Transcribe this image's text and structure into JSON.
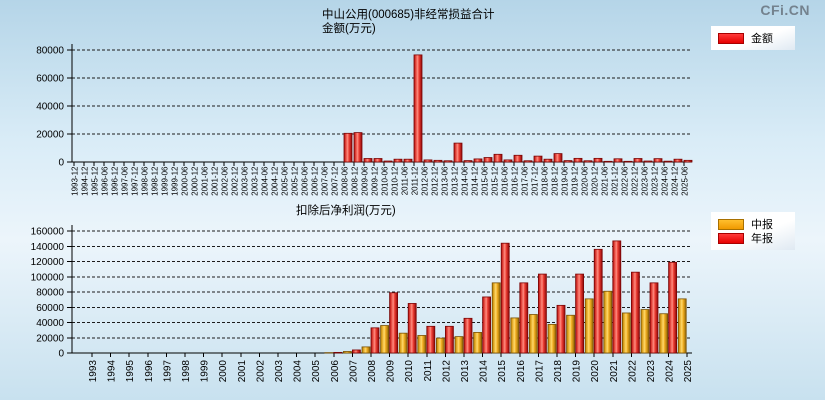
{
  "watermark": "CFi.CN",
  "chart_data": [
    {
      "name": "nonrecurring-gains",
      "type": "bar",
      "title": "中山公用(000685)非经常损益合计",
      "subtitle": "金额(万元)",
      "legend": [
        {
          "label": "金额",
          "color": "#ff0000"
        }
      ],
      "ylim": [
        0,
        80000
      ],
      "ytick_step": 20000,
      "grid": "dashed",
      "legend_position": "top-right",
      "categories": [
        "1993-12",
        "1994-12",
        "1995-12",
        "1996-06",
        "1996-12",
        "1997-06",
        "1997-12",
        "1998-06",
        "1998-12",
        "1999-06",
        "1999-12",
        "2000-06",
        "2000-12",
        "2001-06",
        "2001-12",
        "2002-06",
        "2002-12",
        "2003-06",
        "2003-12",
        "2004-06",
        "2004-12",
        "2005-06",
        "2005-12",
        "2006-06",
        "2006-12",
        "2007-06",
        "2007-12",
        "2008-06",
        "2008-12",
        "2009-06",
        "2009-12",
        "2010-06",
        "2010-12",
        "2011-06",
        "2011-12",
        "2012-06",
        "2012-12",
        "2013-06",
        "2013-12",
        "2014-06",
        "2014-12",
        "2015-06",
        "2015-12",
        "2016-06",
        "2016-12",
        "2017-06",
        "2017-12",
        "2018-06",
        "2018-12",
        "2019-06",
        "2019-12",
        "2020-06",
        "2020-12",
        "2021-06",
        "2021-12",
        "2022-06",
        "2022-12",
        "2023-06",
        "2023-12",
        "2024-06",
        "2024-12",
        "2025-06"
      ],
      "values": [
        0,
        0,
        0,
        0,
        0,
        0,
        0,
        0,
        0,
        0,
        0,
        0,
        0,
        0,
        0,
        0,
        0,
        0,
        0,
        0,
        0,
        0,
        0,
        0,
        0,
        0,
        0,
        20500,
        21000,
        2500,
        2500,
        700,
        2000,
        2000,
        76500,
        1500,
        1200,
        900,
        13500,
        1000,
        2200,
        3200,
        5500,
        1500,
        4800,
        900,
        4200,
        2000,
        6000,
        1000,
        2600,
        900,
        2600,
        500,
        2300,
        500,
        2500,
        700,
        2400,
        600,
        2000,
        1200
      ],
      "color": "#ff0000"
    },
    {
      "name": "net-profit-after-deduction",
      "type": "bar",
      "title": "扣除后净利润(万元)",
      "legend": [
        {
          "label": "中报",
          "color": "#ffaa00"
        },
        {
          "label": "年报",
          "color": "#ff0000"
        }
      ],
      "ylim": [
        0,
        160000
      ],
      "ytick_step": 20000,
      "grid": "dashed",
      "legend_position": "top-right",
      "categories": [
        "1993",
        "1994",
        "1995",
        "1996",
        "1997",
        "1998",
        "1999",
        "2000",
        "2001",
        "2002",
        "2003",
        "2004",
        "2005",
        "2006",
        "2007",
        "2008",
        "2009",
        "2010",
        "2011",
        "2012",
        "2013",
        "2014",
        "2015",
        "2016",
        "2017",
        "2018",
        "2019",
        "2020",
        "2021",
        "2022",
        "2023",
        "2024",
        "2025"
      ],
      "series": [
        {
          "name": "中报",
          "color": "#ffaa00",
          "values": [
            0,
            0,
            0,
            0,
            0,
            0,
            0,
            0,
            0,
            0,
            0,
            0,
            0,
            500,
            2000,
            8000,
            36000,
            26000,
            23000,
            19500,
            21500,
            27000,
            92000,
            46000,
            50500,
            37500,
            49500,
            71000,
            81000,
            52500,
            57000,
            51500,
            71000
          ]
        },
        {
          "name": "年报",
          "color": "#ff0000",
          "values": [
            0,
            0,
            0,
            0,
            0,
            0,
            0,
            0,
            0,
            0,
            0,
            0,
            0,
            800,
            4000,
            33000,
            79000,
            65000,
            35000,
            35000,
            45500,
            73500,
            144000,
            92000,
            103500,
            62500,
            103500,
            136000,
            147000,
            106000,
            92000,
            119000,
            null
          ]
        }
      ]
    }
  ]
}
